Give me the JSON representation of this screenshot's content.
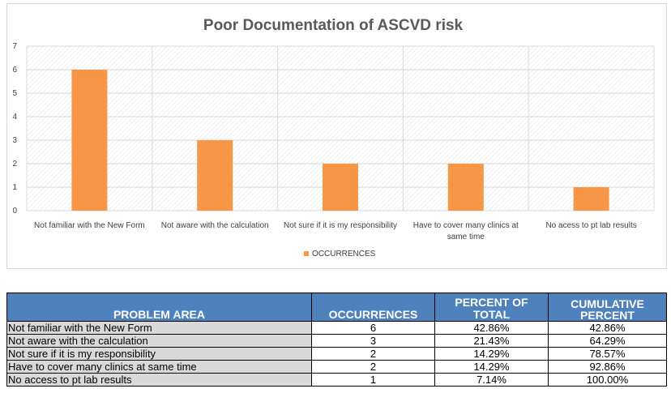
{
  "chart_data": {
    "type": "bar",
    "title": "Poor Documentation of ASCVD risk",
    "categories": [
      "Not familiar with the New Form",
      "Not aware with the calculation",
      "Not sure if it is my responsibility",
      "Have to cover many clinics at same time",
      "No acess to pt lab results"
    ],
    "category_lines": [
      [
        "Not familiar with the New Form"
      ],
      [
        "Not aware with the calculation"
      ],
      [
        "Not sure if it is my responsibility"
      ],
      [
        "Have to cover many clinics at",
        "same time"
      ],
      [
        "No acess to pt lab results"
      ]
    ],
    "series": [
      {
        "name": "OCCURRENCES",
        "values": [
          6,
          3,
          2,
          2,
          1
        ],
        "color": "#f79646"
      }
    ],
    "ylim": [
      0,
      7
    ],
    "yticks": [
      0,
      1,
      2,
      3,
      4,
      5,
      6,
      7
    ],
    "grid": true,
    "legend": "bottom"
  },
  "table": {
    "headers": [
      "PROBLEM AREA",
      "OCCURRENCES",
      "PERCENT OF TOTAL",
      "CUMULATIVE PERCENT"
    ],
    "header_color": "#4f81bd",
    "rows": [
      {
        "problem": "Not familiar with the New Form",
        "occurrences": "6",
        "percent": "42.86%",
        "cumulative": "42.86%"
      },
      {
        "problem": "Not aware with the calculation",
        "occurrences": "3",
        "percent": "21.43%",
        "cumulative": "64.29%"
      },
      {
        "problem": "Not sure if it is my responsibility",
        "occurrences": "2",
        "percent": "14.29%",
        "cumulative": "78.57%"
      },
      {
        "problem": "Have to cover many clinics at same time",
        "occurrences": "2",
        "percent": "14.29%",
        "cumulative": "92.86%"
      },
      {
        "problem": "No access to pt lab results",
        "occurrences": "1",
        "percent": "7.14%",
        "cumulative": "100.00%"
      }
    ]
  }
}
